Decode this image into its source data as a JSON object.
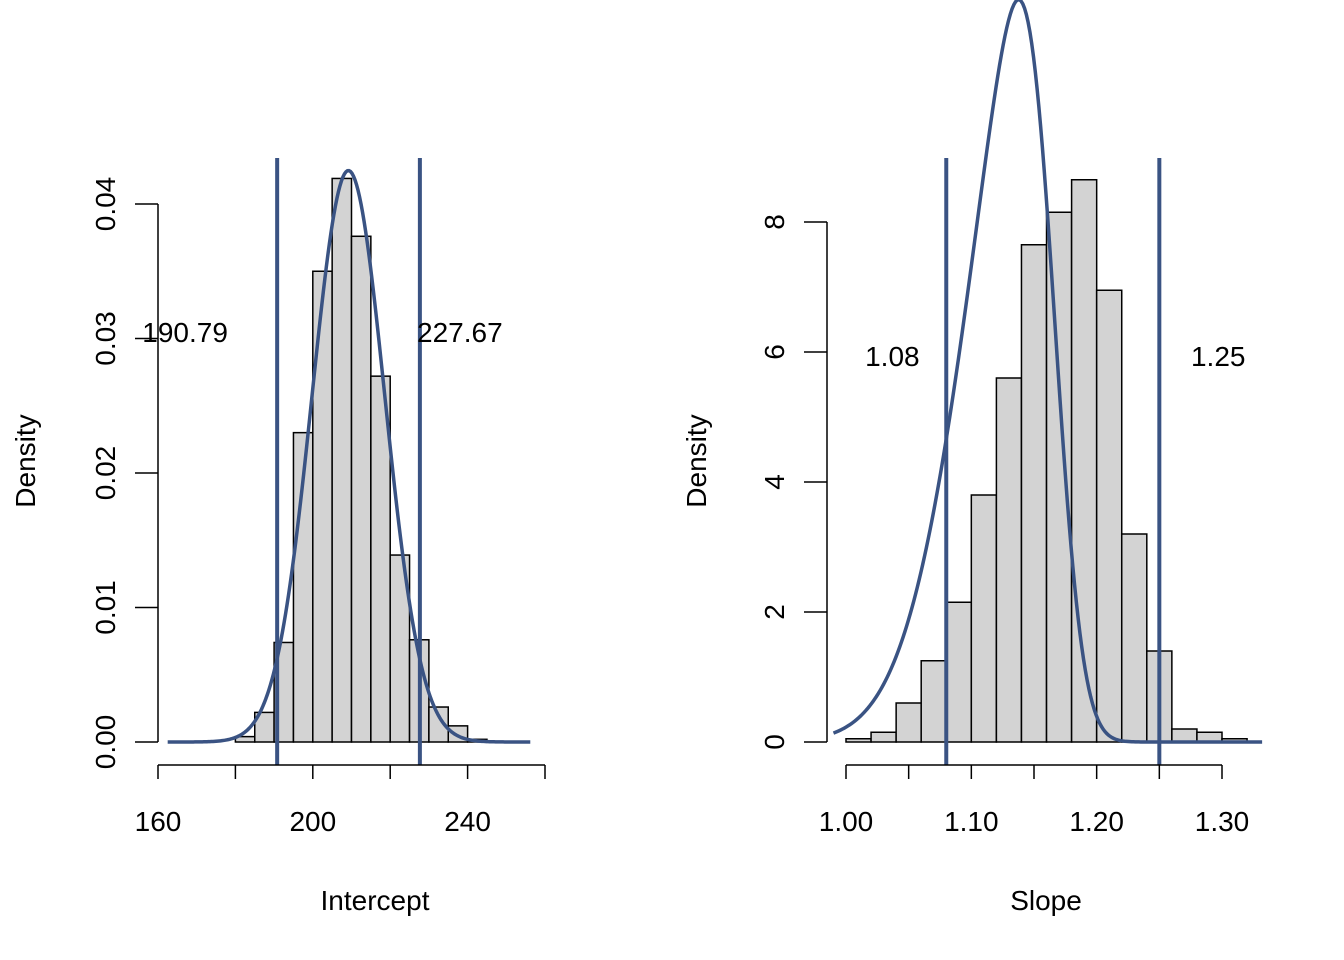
{
  "chart_data": [
    {
      "type": "bar",
      "subtype": "histogram-with-density",
      "title": "",
      "xlabel": "Intercept",
      "ylabel": "Density",
      "xlim": [
        160,
        260
      ],
      "ylim": [
        0,
        0.04
      ],
      "x_axis_range": [
        160,
        260
      ],
      "x_ticks": [
        160,
        180,
        200,
        220,
        240,
        260
      ],
      "x_tick_labels": [
        "160",
        "",
        "200",
        "",
        "240",
        ""
      ],
      "y_ticks": [
        0,
        0.01,
        0.02,
        0.03,
        0.04
      ],
      "y_tick_labels": [
        "0.00",
        "0.01",
        "0.02",
        "0.03",
        "0.04"
      ],
      "bins": [
        {
          "start": 180,
          "end": 185,
          "density": 0.0004
        },
        {
          "start": 185,
          "end": 190,
          "density": 0.0022
        },
        {
          "start": 190,
          "end": 195,
          "density": 0.0074
        },
        {
          "start": 195,
          "end": 200,
          "density": 0.023
        },
        {
          "start": 200,
          "end": 205,
          "density": 0.035
        },
        {
          "start": 205,
          "end": 210,
          "density": 0.0419
        },
        {
          "start": 210,
          "end": 215,
          "density": 0.0376
        },
        {
          "start": 215,
          "end": 220,
          "density": 0.0272
        },
        {
          "start": 220,
          "end": 225,
          "density": 0.0139
        },
        {
          "start": 225,
          "end": 230,
          "density": 0.0076
        },
        {
          "start": 230,
          "end": 235,
          "density": 0.0026
        },
        {
          "start": 235,
          "end": 240,
          "density": 0.0012
        },
        {
          "start": 240,
          "end": 245,
          "density": 0.0002
        }
      ],
      "density_curve": {
        "mean": 209.2,
        "sd": 9.39,
        "from": 162.5,
        "to": 256.2
      },
      "vlines": [
        190.79,
        227.67
      ],
      "annotations": [
        {
          "text": "190.79",
          "x": 167,
          "y": 0.0303
        },
        {
          "text": "227.67",
          "x": 238,
          "y": 0.0303
        }
      ],
      "colors": {
        "bars": "#d3d3d3",
        "bar_border": "#000000",
        "curve": "#3a5383",
        "vlines": "#3a5383"
      }
    },
    {
      "type": "bar",
      "subtype": "histogram-with-density",
      "title": "",
      "xlabel": "Slope",
      "ylabel": "Density",
      "xlim": [
        1.0,
        1.3
      ],
      "ylim": [
        0,
        8
      ],
      "x_axis_range": [
        1.0,
        1.3
      ],
      "x_ticks": [
        1.0,
        1.05,
        1.1,
        1.15,
        1.2,
        1.25,
        1.3
      ],
      "x_tick_labels": [
        "1.00",
        "",
        "1.10",
        "",
        "1.20",
        "",
        "1.30"
      ],
      "y_ticks": [
        0,
        2,
        4,
        6,
        8
      ],
      "y_tick_labels": [
        "0",
        "2",
        "4",
        "6",
        "8"
      ],
      "bins": [
        {
          "start": 1.0,
          "end": 1.02,
          "density": 0.05
        },
        {
          "start": 1.02,
          "end": 1.04,
          "density": 0.15
        },
        {
          "start": 1.04,
          "end": 1.06,
          "density": 0.6
        },
        {
          "start": 1.06,
          "end": 1.08,
          "density": 1.25
        },
        {
          "start": 1.08,
          "end": 1.1,
          "density": 2.15
        },
        {
          "start": 1.1,
          "end": 1.12,
          "density": 3.8
        },
        {
          "start": 1.12,
          "end": 1.14,
          "density": 5.6
        },
        {
          "start": 1.14,
          "end": 1.16,
          "density": 7.65
        },
        {
          "start": 1.16,
          "end": 1.18,
          "density": 8.15
        },
        {
          "start": 1.18,
          "end": 1.2,
          "density": 8.65
        },
        {
          "start": 1.2,
          "end": 1.22,
          "density": 6.95
        },
        {
          "start": 1.22,
          "end": 1.24,
          "density": 3.2
        },
        {
          "start": 1.24,
          "end": 1.26,
          "density": 1.4
        },
        {
          "start": 1.26,
          "end": 1.28,
          "density": 0.2
        },
        {
          "start": 1.28,
          "end": 1.3,
          "density": 0.15
        },
        {
          "start": 1.3,
          "end": 1.32,
          "density": 0.05
        }
      ],
      "density_curve": {
        "mean": 1.165,
        "sd": 0.048,
        "skew": -3,
        "from": 0.99,
        "to": 1.332
      },
      "vlines": [
        1.08,
        1.25
      ],
      "annotations": [
        {
          "text": "1.08",
          "x": 1.037,
          "y": 5.9
        },
        {
          "text": "1.25",
          "x": 1.297,
          "y": 5.9
        }
      ],
      "colors": {
        "bars": "#d3d3d3",
        "bar_border": "#000000",
        "curve": "#3a5383",
        "vlines": "#3a5383"
      }
    }
  ]
}
